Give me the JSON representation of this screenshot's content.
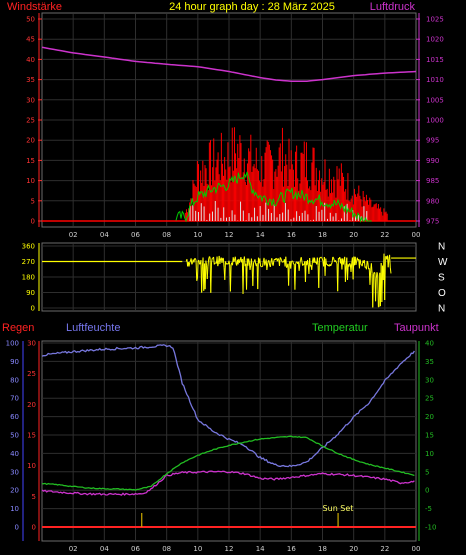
{
  "title": "24 hour graph day : 28 März 2025",
  "colors": {
    "wind": "#ff0000",
    "gust": "#00cc00",
    "avg": "#e0e0e0",
    "pressure": "#cc33cc",
    "direction": "#ffff00",
    "rain": "#ff2222",
    "humidity": "#7777dd",
    "temperature": "#22bb22",
    "dewpoint": "#cc33cc",
    "sun": "#ccaa00",
    "grid": "#2e2e2e"
  },
  "x_ticks": [
    "02",
    "04",
    "06",
    "08",
    "10",
    "12",
    "14",
    "16",
    "18",
    "20",
    "22",
    "00"
  ],
  "chart_data": [
    {
      "type": "line",
      "left_label": "Windstärke",
      "right_label": "Luftdruck",
      "y_left": {
        "range": [
          0,
          50
        ],
        "ticks": [
          "0",
          "5",
          "10",
          "15",
          "20",
          "25",
          "30",
          "35",
          "40",
          "45",
          "50"
        ]
      },
      "y_right": {
        "range": [
          975,
          1025
        ],
        "ticks": [
          "975",
          "980",
          "985",
          "990",
          "995",
          "1000",
          "1005",
          "1010",
          "1015",
          "1020",
          "1025"
        ]
      },
      "x_range": [
        0,
        24
      ],
      "series": [
        {
          "key": "pressure",
          "x": [
            0,
            2,
            4,
            6,
            8,
            10,
            12,
            14,
            15,
            16,
            17,
            18,
            20,
            22,
            24
          ],
          "y": [
            1018,
            1016.6,
            1015.6,
            1014.5,
            1013.8,
            1013.2,
            1012,
            1010.5,
            1009.9,
            1009.6,
            1009.6,
            1010,
            1011,
            1011.6,
            1012
          ]
        },
        {
          "key": "wind_envelope",
          "x": [
            0,
            9.2,
            9.6,
            10,
            11,
            12,
            12.5,
            13,
            14,
            15,
            15.5,
            16,
            17,
            18,
            19,
            20,
            21,
            22
          ],
          "y": [
            0,
            3,
            9,
            18,
            21,
            23,
            26,
            24,
            19,
            22,
            24,
            19,
            22,
            18,
            16,
            11,
            6,
            3
          ]
        },
        {
          "key": "gust",
          "x": [
            0,
            9.2,
            9.6,
            10,
            11,
            12,
            13,
            13.5,
            14,
            15,
            16,
            17,
            18,
            19,
            20,
            20.6
          ],
          "y": [
            0,
            1,
            4,
            6,
            8,
            9,
            12,
            8,
            6,
            5,
            7,
            6,
            5,
            4,
            2,
            0
          ]
        }
      ]
    },
    {
      "type": "scatter",
      "y_left": {
        "range": [
          0,
          360
        ],
        "ticks": [
          "0",
          "90",
          "180",
          "270",
          "360"
        ]
      },
      "compass": [
        "N",
        "W",
        "S",
        "O",
        "N"
      ],
      "x_range": [
        0,
        24
      ],
      "series": [
        {
          "key": "direction",
          "x": [
            0,
            9,
            10,
            12,
            14,
            16,
            18,
            20,
            21,
            21.5,
            22,
            22.5,
            24
          ],
          "y": [
            270,
            270,
            270,
            275,
            265,
            270,
            270,
            275,
            250,
            180,
            300,
            290,
            290
          ]
        }
      ]
    },
    {
      "type": "line",
      "left_labels": [
        "Regen",
        "Luftfeuchte"
      ],
      "right_labels": [
        "Temperatur",
        "Taupunkt"
      ],
      "y_rain": {
        "range": [
          0,
          100
        ],
        "ticks": [
          "0",
          "10",
          "20",
          "30",
          "40",
          "50",
          "60",
          "70",
          "80",
          "90",
          "100"
        ]
      },
      "y_hum": {
        "range": [
          0,
          30
        ],
        "ticks": [
          "0",
          "5",
          "10",
          "15",
          "20",
          "25",
          "30"
        ]
      },
      "y_right": {
        "range": [
          -10,
          40
        ],
        "ticks": [
          "-10",
          "-5",
          "0",
          "5",
          "10",
          "15",
          "20",
          "25",
          "30",
          "35",
          "40"
        ]
      },
      "x_range": [
        0,
        24
      ],
      "annotation": {
        "label": "Sun Set",
        "x": 19
      },
      "markers_x": [
        6.4,
        19
      ],
      "series": [
        {
          "key": "humidity",
          "x": [
            0,
            1,
            2,
            3,
            4,
            5,
            6,
            7,
            8,
            8.4,
            9,
            10,
            11,
            12,
            13,
            14,
            15,
            16,
            17,
            18,
            19,
            20,
            21,
            22,
            23,
            24
          ],
          "y": [
            28,
            28.3,
            28.6,
            28.8,
            29,
            29.1,
            29.2,
            29.4,
            29.6,
            29.3,
            23.5,
            17.5,
            15.6,
            14.3,
            13.3,
            11.3,
            10.1,
            9.9,
            10.6,
            12.9,
            15.2,
            17.9,
            20.3,
            23.8,
            26.6,
            28.9
          ]
        },
        {
          "key": "temperature",
          "x": [
            0,
            1,
            2,
            3,
            4,
            5,
            6,
            7,
            8,
            9,
            10,
            11,
            12,
            13,
            14,
            15,
            16,
            17,
            18,
            19,
            20,
            21,
            22,
            23,
            24
          ],
          "y": [
            1.8,
            1.5,
            1,
            0.6,
            0.4,
            0.3,
            0.1,
            1,
            4.5,
            7.5,
            9.5,
            11,
            12.2,
            13.1,
            13.9,
            14.3,
            14.6,
            14.3,
            12,
            10,
            8.3,
            7,
            6,
            5,
            4
          ]
        },
        {
          "key": "dewpoint",
          "x": [
            0,
            1,
            2,
            3,
            4,
            5,
            6,
            6.5,
            7,
            8,
            9,
            10,
            11,
            12,
            13,
            14,
            15,
            16,
            17,
            18,
            19,
            20,
            21,
            22,
            23,
            24
          ],
          "y": [
            -0.2,
            -0.5,
            -0.8,
            -1,
            -1.1,
            -1.1,
            -1,
            -0.9,
            0.3,
            4,
            4.8,
            4.9,
            5,
            5,
            4.5,
            3.2,
            3,
            3.5,
            4,
            4.5,
            4.3,
            4,
            3.5,
            3,
            2,
            2.4
          ]
        },
        {
          "key": "rain",
          "x": [
            0,
            24
          ],
          "y": [
            0,
            0
          ]
        }
      ]
    }
  ]
}
